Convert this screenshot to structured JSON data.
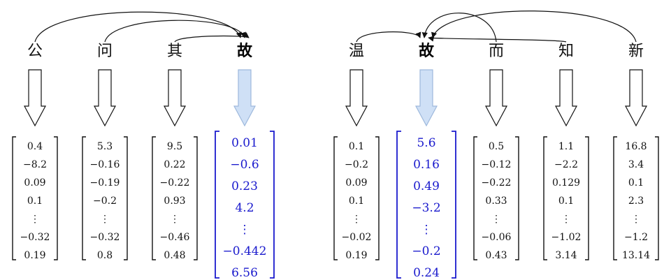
{
  "groups": [
    {
      "columns": [
        {
          "token": "公",
          "highlight": false,
          "vector": [
            "0.4",
            "−8.2",
            "0.09",
            "0.1",
            "⋮",
            "−0.32",
            "0.19"
          ]
        },
        {
          "token": "问",
          "highlight": false,
          "vector": [
            "5.3",
            "−0.16",
            "−0.19",
            "−0.2",
            "⋮",
            "−0.32",
            "0.8"
          ]
        },
        {
          "token": "其",
          "highlight": false,
          "vector": [
            "9.5",
            "0.22",
            "−0.22",
            "0.93",
            "⋮",
            "−0.46",
            "0.48"
          ]
        },
        {
          "token": "故",
          "highlight": true,
          "vector": [
            "0.01",
            "−0.6",
            "0.23",
            "4.2",
            "⋮",
            "−0.442",
            "6.56"
          ]
        }
      ],
      "target": 3
    },
    {
      "columns": [
        {
          "token": "温",
          "highlight": false,
          "vector": [
            "0.1",
            "−0.2",
            "0.09",
            "0.1",
            "⋮",
            "−0.02",
            "0.19"
          ]
        },
        {
          "token": "故",
          "highlight": true,
          "vector": [
            "5.6",
            "0.16",
            "0.49",
            "−3.2",
            "⋮",
            "−0.2",
            "0.24"
          ]
        },
        {
          "token": "而",
          "highlight": false,
          "vector": [
            "0.5",
            "−0.12",
            "−0.22",
            "0.33",
            "⋮",
            "−0.06",
            "0.43"
          ]
        },
        {
          "token": "知",
          "highlight": false,
          "vector": [
            "1.1",
            "−2.2",
            "0.129",
            "0.1",
            "⋮",
            "−1.02",
            "3.14"
          ]
        },
        {
          "token": "新",
          "highlight": false,
          "vector": [
            "16.8",
            "3.4",
            "0.1",
            "2.3",
            "⋮",
            "−1.2",
            "13.14"
          ]
        }
      ],
      "target": 1
    }
  ],
  "colors": {
    "highlight_text": "#1a1acd",
    "highlight_arrow_fill": "#cfe0f6",
    "highlight_arrow_stroke": "#9db8dc",
    "ink": "#111111"
  }
}
